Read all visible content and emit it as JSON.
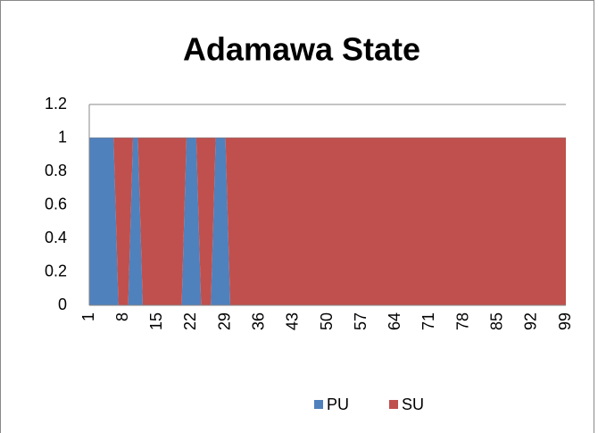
{
  "chart_data": {
    "type": "stacked_area",
    "title": "Adamawa State",
    "categories": [
      1,
      null,
      null,
      null,
      null,
      null,
      null,
      8,
      null,
      null,
      null,
      null,
      null,
      null,
      15,
      null,
      null,
      null,
      null,
      null,
      null,
      22,
      null,
      null,
      null,
      null,
      null,
      null,
      29,
      null,
      null,
      null,
      null,
      null,
      null,
      36,
      null,
      null,
      null,
      null,
      null,
      null,
      43,
      null,
      null,
      null,
      null,
      null,
      null,
      50,
      null,
      null,
      null,
      null,
      null,
      null,
      57,
      null,
      null,
      null,
      null,
      null,
      null,
      64,
      null,
      null,
      null,
      null,
      null,
      null,
      71,
      null,
      null,
      null,
      null,
      null,
      null,
      78,
      null,
      null,
      null,
      null,
      null,
      null,
      85,
      null,
      null,
      null,
      null,
      null,
      null,
      92,
      null,
      null,
      null,
      null,
      null,
      null,
      99
    ],
    "series": [
      {
        "name": "PU",
        "color": "#4f81bd",
        "values": [
          1,
          1,
          1,
          1,
          1,
          1,
          0,
          0,
          0,
          1,
          1,
          0,
          0,
          0,
          0,
          0,
          0,
          0,
          0,
          0,
          1,
          1,
          1,
          0,
          0,
          0,
          1,
          1,
          1,
          0,
          0,
          0,
          0,
          0,
          0,
          0,
          0,
          0,
          0,
          0,
          0,
          0,
          0,
          0,
          0,
          0,
          0,
          0,
          0,
          0,
          0,
          0,
          0,
          0,
          0,
          0,
          0,
          0,
          0,
          0,
          0,
          0,
          0,
          0,
          0,
          0,
          0,
          0,
          0,
          0,
          0,
          0,
          0,
          0,
          0,
          0,
          0,
          0,
          0,
          0,
          0,
          0,
          0,
          0,
          0,
          0,
          0,
          0,
          0,
          0,
          0,
          0,
          0,
          0,
          0,
          0,
          0,
          0,
          0
        ]
      },
      {
        "name": "SU",
        "color": "#c0504d",
        "values": [
          0,
          0,
          0,
          0,
          0,
          0,
          1,
          1,
          1,
          0,
          0,
          1,
          1,
          1,
          1,
          1,
          1,
          1,
          1,
          1,
          0,
          0,
          0,
          1,
          1,
          1,
          0,
          0,
          0,
          1,
          1,
          1,
          1,
          1,
          1,
          1,
          1,
          1,
          1,
          1,
          1,
          1,
          1,
          1,
          1,
          1,
          1,
          1,
          1,
          1,
          1,
          1,
          1,
          1,
          1,
          1,
          1,
          1,
          1,
          1,
          1,
          1,
          1,
          1,
          1,
          1,
          1,
          1,
          1,
          1,
          1,
          1,
          1,
          1,
          1,
          1,
          1,
          1,
          1,
          1,
          1,
          1,
          1,
          1,
          1,
          1,
          1,
          1,
          1,
          1,
          1,
          1,
          1,
          1,
          1,
          1,
          1,
          1,
          1
        ]
      }
    ],
    "ylim": [
      0,
      1.2
    ],
    "yticks": [
      0,
      0.2,
      0.4,
      0.6,
      0.8,
      1,
      1.2
    ],
    "grid": true,
    "legend": "bottom"
  }
}
